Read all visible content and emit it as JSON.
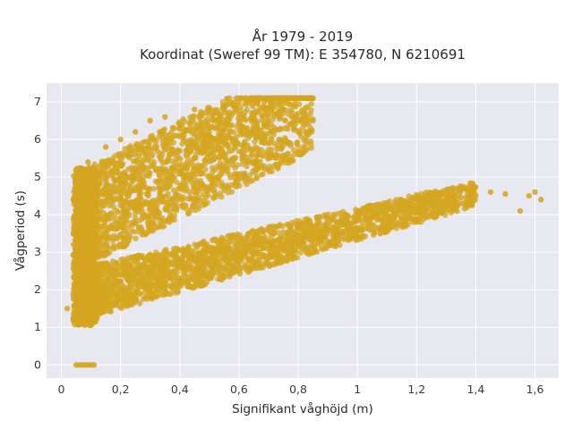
{
  "chart_data": {
    "type": "scatter",
    "title": "År 1979 - 2019",
    "subtitle": "Koordinat (Sweref 99 TM): E 354780, N 6210691",
    "xlabel": "Signifikant våghöjd (m)",
    "ylabel": "Vågperiod (s)",
    "xlim": [
      -0.05,
      1.68
    ],
    "ylim": [
      -0.35,
      7.5
    ],
    "x_ticks": [
      0,
      0.2,
      0.4,
      0.6,
      0.8,
      1,
      1.2,
      1.4,
      1.6
    ],
    "x_tick_labels": [
      "0",
      "0,2",
      "0,4",
      "0,6",
      "0,8",
      "1",
      "1,2",
      "1,4",
      "1,6"
    ],
    "y_ticks": [
      0,
      1,
      2,
      3,
      4,
      5,
      6,
      7
    ],
    "y_tick_labels": [
      "0",
      "1",
      "2",
      "3",
      "4",
      "5",
      "6",
      "7"
    ],
    "grid": true,
    "legend": "none",
    "colors": {
      "point": "#d4a520",
      "plot_bg": "#e8e8f0",
      "grid": "#ffffff"
    },
    "series": [
      {
        "values": [
          [
            0.05,
            0
          ],
          [
            0.06,
            0
          ],
          [
            0.07,
            0
          ],
          [
            0.08,
            0
          ],
          [
            0.09,
            0
          ],
          [
            0.1,
            0
          ],
          [
            0.11,
            0
          ],
          [
            0.02,
            1.5
          ],
          [
            0.04,
            1.2
          ],
          [
            0.05,
            2.1
          ],
          [
            0.05,
            3.5
          ],
          [
            0.06,
            4.1
          ],
          [
            0.06,
            4.8
          ],
          [
            0.07,
            1.1
          ],
          [
            0.08,
            5.2
          ],
          [
            0.09,
            5.4
          ],
          [
            0.1,
            1.05
          ],
          [
            0.12,
            5.1
          ],
          [
            0.14,
            1.4
          ],
          [
            0.15,
            5.8
          ],
          [
            0.18,
            1.6
          ],
          [
            0.2,
            6.0
          ],
          [
            0.22,
            2.0
          ],
          [
            0.25,
            6.2
          ],
          [
            0.28,
            2.1
          ],
          [
            0.3,
            6.5
          ],
          [
            0.32,
            2.3
          ],
          [
            0.35,
            6.6
          ],
          [
            0.38,
            2.5
          ],
          [
            0.4,
            6.4
          ],
          [
            0.42,
            2.6
          ],
          [
            0.45,
            6.8
          ],
          [
            0.48,
            2.7
          ],
          [
            0.5,
            6.3
          ],
          [
            0.52,
            2.75
          ],
          [
            0.55,
            6.9
          ],
          [
            0.58,
            2.9
          ],
          [
            0.6,
            7.0
          ],
          [
            0.62,
            3.0
          ],
          [
            0.65,
            6.5
          ],
          [
            0.68,
            3.1
          ],
          [
            0.7,
            7.05
          ],
          [
            0.72,
            3.15
          ],
          [
            0.75,
            6.8
          ],
          [
            0.78,
            3.3
          ],
          [
            0.8,
            7.1
          ],
          [
            0.82,
            3.4
          ],
          [
            0.85,
            6.5
          ],
          [
            0.88,
            3.55
          ],
          [
            0.9,
            3.6
          ],
          [
            0.95,
            3.75
          ],
          [
            1.0,
            3.85
          ],
          [
            1.05,
            3.95
          ],
          [
            1.1,
            4.0
          ],
          [
            1.15,
            4.1
          ],
          [
            1.2,
            4.2
          ],
          [
            1.25,
            4.3
          ],
          [
            1.3,
            4.4
          ],
          [
            1.35,
            4.45
          ],
          [
            1.4,
            4.5
          ],
          [
            1.45,
            4.6
          ],
          [
            1.5,
            4.55
          ],
          [
            1.55,
            4.1
          ],
          [
            1.58,
            4.5
          ],
          [
            1.6,
            4.6
          ],
          [
            1.62,
            4.4
          ],
          [
            0.3,
            1.8
          ],
          [
            0.4,
            2.2
          ],
          [
            0.5,
            2.3
          ],
          [
            0.33,
            4.9
          ],
          [
            0.45,
            5.5
          ],
          [
            0.62,
            5.0
          ],
          [
            0.7,
            5.2
          ],
          [
            0.22,
            3.2
          ],
          [
            0.15,
            3.0
          ],
          [
            0.1,
            2.5
          ],
          [
            0.1,
            3.8
          ],
          [
            0.12,
            4.5
          ]
        ]
      }
    ]
  }
}
